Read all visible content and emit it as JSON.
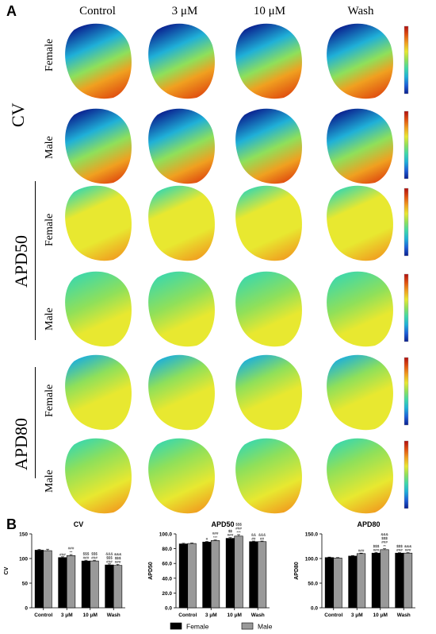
{
  "panel_a_label": "A",
  "panel_b_label": "B",
  "columns": [
    "Control",
    "3 μM",
    "10 μM",
    "Wash"
  ],
  "groups": [
    {
      "name": "CV",
      "rows": [
        "Female",
        "Male"
      ]
    },
    {
      "name": "APD50",
      "rows": [
        "Female",
        "Male"
      ]
    },
    {
      "name": "APD80",
      "rows": [
        "Female",
        "Male"
      ]
    }
  ],
  "colors": {
    "female": "#000000",
    "male": "#999999",
    "colormap": [
      "#0a1f8f",
      "#1e5fd8",
      "#1fb0d8",
      "#3fd8a8",
      "#8fe05a",
      "#e8e830",
      "#f0a020",
      "#e05010",
      "#b01010"
    ]
  },
  "chart_data": [
    {
      "type": "bar",
      "title": "CV",
      "ylabel": "CV",
      "ylim": [
        0,
        150
      ],
      "yticks": [
        "0",
        "50",
        "100",
        "150"
      ],
      "categories": [
        "Control",
        "3 μM",
        "10 μM",
        "Wash"
      ],
      "series": [
        {
          "name": "Female",
          "values": [
            117,
            102,
            95,
            87
          ],
          "errors": [
            1.5,
            1.5,
            1.5,
            2
          ]
        },
        {
          "name": "Male",
          "values": [
            116,
            106,
            95,
            86
          ],
          "errors": [
            3,
            2,
            1.5,
            2
          ]
        }
      ],
      "annotations": [
        {
          "category": "3 μM",
          "series": "Female",
          "lines": [
            "###"
          ]
        },
        {
          "category": "3 μM",
          "series": "Male",
          "lines": [
            "###",
            "**"
          ]
        },
        {
          "category": "10 μM",
          "series": "Female",
          "lines": [
            "$$$",
            "###"
          ]
        },
        {
          "category": "10 μM",
          "series": "Male",
          "lines": [
            "$$$",
            "###"
          ]
        },
        {
          "category": "Wash",
          "series": "Female",
          "lines": [
            "&&&",
            "$$$",
            "###"
          ]
        },
        {
          "category": "Wash",
          "series": "Male",
          "lines": [
            "&&&",
            "$$$",
            "###"
          ]
        }
      ],
      "grid": false
    },
    {
      "type": "bar",
      "title": "APD50",
      "ylabel": "APD50",
      "ylim": [
        0,
        100
      ],
      "yticks": [
        "0.0",
        "20.0",
        "40.0",
        "60.0",
        "80.0",
        "100.0"
      ],
      "categories": [
        "Control",
        "3 μM",
        "10 μM",
        "Wash"
      ],
      "series": [
        {
          "name": "Female",
          "values": [
            86.5,
            89,
            94,
            89.5
          ],
          "errors": [
            0.8,
            0.8,
            1,
            0.8
          ]
        },
        {
          "name": "Male",
          "values": [
            87,
            91,
            97,
            89.5
          ],
          "errors": [
            0.8,
            0.8,
            2,
            0.8
          ]
        }
      ],
      "annotations": [
        {
          "category": "3 μM",
          "series": "Female",
          "lines": [
            "#"
          ]
        },
        {
          "category": "3 μM",
          "series": "Male",
          "lines": [
            "###",
            "***"
          ]
        },
        {
          "category": "10 μM",
          "series": "Female",
          "lines": [
            "$$",
            "###"
          ]
        },
        {
          "category": "10 μM",
          "series": "Male",
          "lines": [
            "$$$",
            "###",
            "***"
          ]
        },
        {
          "category": "Wash",
          "series": "Female",
          "lines": [
            "&&",
            "##"
          ]
        },
        {
          "category": "Wash",
          "series": "Male",
          "lines": [
            "&&&",
            "##"
          ]
        }
      ],
      "grid": false
    },
    {
      "type": "bar",
      "title": "APD80",
      "ylabel": "APD80",
      "ylim": [
        0,
        150
      ],
      "yticks": [
        "0.0",
        "50.0",
        "100.0",
        "150.0"
      ],
      "categories": [
        "Control",
        "3 μM",
        "10 μM",
        "Wash"
      ],
      "series": [
        {
          "name": "Female",
          "values": [
            102,
            105,
            111,
            111
          ],
          "errors": [
            1,
            1,
            1.5,
            1
          ]
        },
        {
          "name": "Male",
          "values": [
            101,
            110,
            118,
            111
          ],
          "errors": [
            1,
            1,
            2,
            1
          ]
        }
      ],
      "annotations": [
        {
          "category": "3 μM",
          "series": "Male",
          "lines": [
            "###"
          ]
        },
        {
          "category": "10 μM",
          "series": "Female",
          "lines": [
            "$$$",
            "###"
          ]
        },
        {
          "category": "10 μM",
          "series": "Male",
          "lines": [
            "&&&",
            "$$$",
            "###",
            "**"
          ]
        },
        {
          "category": "Wash",
          "series": "Female",
          "lines": [
            "$$$",
            "###"
          ]
        },
        {
          "category": "Wash",
          "series": "Male",
          "lines": [
            "&&&",
            "###"
          ]
        }
      ],
      "grid": false
    }
  ],
  "legend": {
    "items": [
      "Female",
      "Male"
    ],
    "position": "bottom-center"
  }
}
